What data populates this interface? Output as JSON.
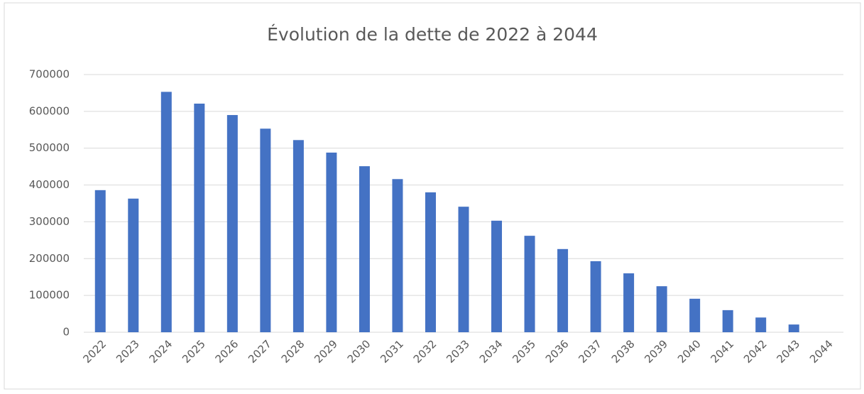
{
  "chart_data": {
    "type": "bar",
    "title": "Évolution de la dette de 2022 à 2044",
    "categories": [
      "2022",
      "2023",
      "2024",
      "2025",
      "2026",
      "2027",
      "2028",
      "2029",
      "2030",
      "2031",
      "2032",
      "2033",
      "2034",
      "2035",
      "2036",
      "2037",
      "2038",
      "2039",
      "2040",
      "2041",
      "2042",
      "2043",
      "2044"
    ],
    "values": [
      386000,
      363000,
      653000,
      621000,
      590000,
      553000,
      522000,
      488000,
      451000,
      416000,
      380000,
      341000,
      303000,
      262000,
      226000,
      193000,
      160000,
      125000,
      91000,
      60000,
      40000,
      21000,
      0
    ],
    "color": "#4472c4",
    "ylim": [
      0,
      700000
    ],
    "yticks": [
      0,
      100000,
      200000,
      300000,
      400000,
      500000,
      600000,
      700000
    ],
    "grid": true
  }
}
